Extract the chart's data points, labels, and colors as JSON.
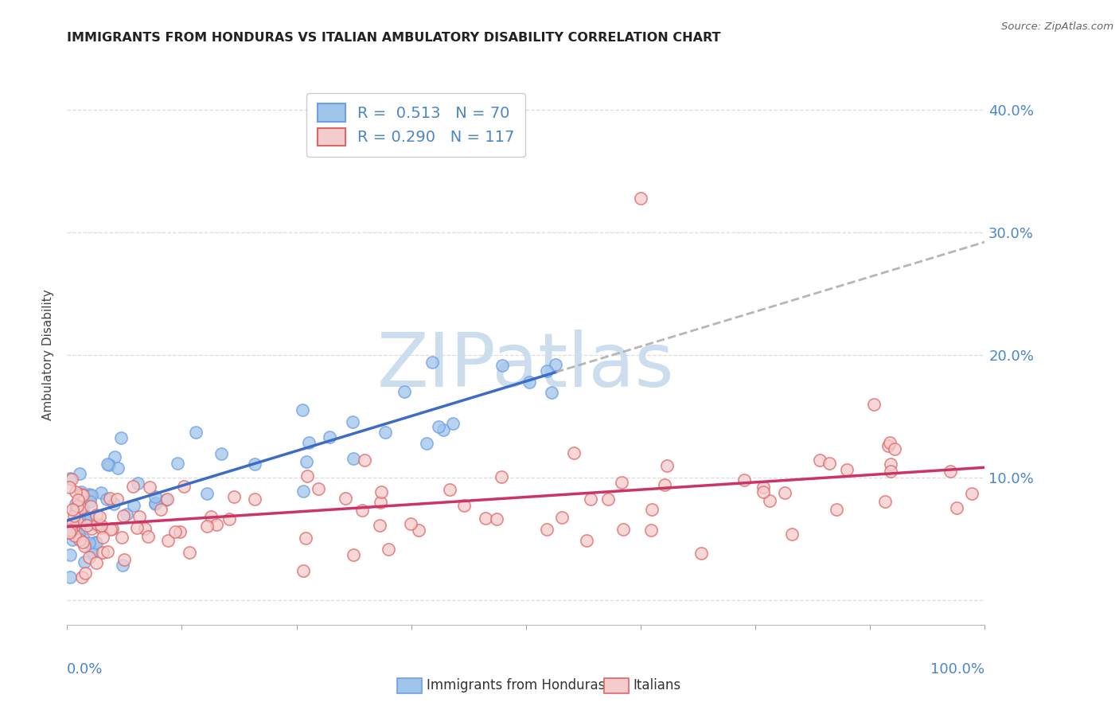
{
  "title": "IMMIGRANTS FROM HONDURAS VS ITALIAN AMBULATORY DISABILITY CORRELATION CHART",
  "source": "Source: ZipAtlas.com",
  "ylabel": "Ambulatory Disability",
  "xlim": [
    0.0,
    1.0
  ],
  "ylim": [
    -0.02,
    0.42
  ],
  "ytick_vals": [
    0.0,
    0.1,
    0.2,
    0.3,
    0.4
  ],
  "ytick_labels": [
    "",
    "10.0%",
    "20.0%",
    "30.0%",
    "40.0%"
  ],
  "legend_line1": "R =  0.513   N = 70",
  "legend_line2": "R = 0.290   N = 117",
  "blue_color": "#9fc5e8",
  "blue_edge": "#6d9eeb",
  "pink_color": "#f4cccc",
  "pink_edge": "#e06666",
  "blue_line_color": "#3d6cc7",
  "pink_line_color": "#cc3366",
  "dash_color": "#aaaaaa",
  "axis_label_color": "#4a86c8",
  "title_color": "#222222",
  "source_color": "#666666",
  "watermark_color": "#ccddee",
  "watermark_text": "ZIPatlas",
  "grid_color": "#dddddd",
  "bottom_legend_blue": "Immigrants from Honduras",
  "bottom_legend_pink": "Italians"
}
